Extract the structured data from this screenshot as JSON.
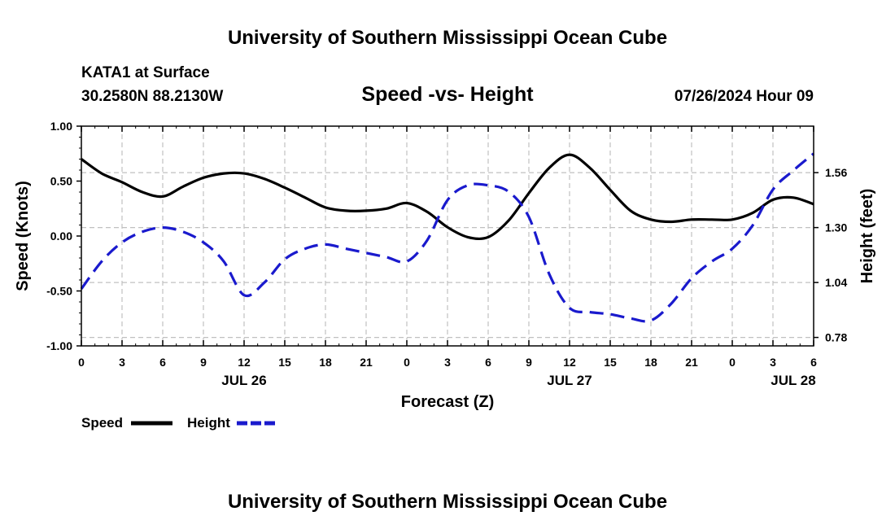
{
  "header": {
    "title": "University of Southern Mississippi Ocean Cube",
    "station": "KATA1 at Surface",
    "coords": "30.2580N  88.2130W",
    "plot_title": "Speed -vs- Height",
    "datetime": "07/26/2024 Hour 09"
  },
  "footer": {
    "title": "University of Southern Mississippi Ocean Cube"
  },
  "colors": {
    "speed": "#000000",
    "height": "#1a1acd",
    "grid": "#c0c0c0"
  },
  "chart_data": {
    "type": "line",
    "title": "Speed -vs- Height",
    "xlabel": "Forecast (Z)",
    "ylabel": "Speed (Knots)",
    "ylabel_right": "Height (feet)",
    "x_hours": [
      0,
      54
    ],
    "x_ticks": [
      0,
      3,
      6,
      9,
      12,
      15,
      18,
      21,
      24,
      27,
      30,
      33,
      36,
      39,
      42,
      45,
      48,
      51,
      54
    ],
    "x_tick_labels": [
      "0",
      "3",
      "6",
      "9",
      "12",
      "15",
      "18",
      "21",
      "0",
      "3",
      "6",
      "9",
      "12",
      "15",
      "18",
      "21",
      "0",
      "3",
      "6"
    ],
    "date_labels": [
      {
        "hour": 12,
        "label": "JUL 26"
      },
      {
        "hour": 36,
        "label": "JUL 27"
      },
      {
        "hour": 52.5,
        "label": "JUL 28"
      }
    ],
    "ylim": [
      -1.0,
      1.0
    ],
    "y_ticks": [
      -1.0,
      -0.5,
      0.0,
      0.5,
      1.0
    ],
    "y_tick_labels": [
      "-1.00",
      "-0.50",
      "0.00",
      "0.50",
      "1.00"
    ],
    "ylim_right": [
      0.74,
      1.78
    ],
    "y_ticks_right": [
      0.78,
      1.04,
      1.3,
      1.56
    ],
    "y_tick_labels_right": [
      "0.78",
      "1.04",
      "1.30",
      "1.56"
    ],
    "grid": true,
    "legend_position": "bottom-left",
    "series": [
      {
        "name": "Speed",
        "axis": "left",
        "style": "solid",
        "x": [
          0,
          1.5,
          3,
          4.5,
          6,
          7.5,
          9,
          10.5,
          12,
          13.5,
          15,
          16.5,
          18,
          19.5,
          21,
          22.5,
          24,
          25.5,
          27,
          28.5,
          30,
          31.5,
          33,
          34.5,
          36,
          37.5,
          39,
          40.5,
          42,
          43.5,
          45,
          46.5,
          48,
          49.5,
          51,
          52.5,
          54
        ],
        "values": [
          0.7,
          0.57,
          0.49,
          0.4,
          0.36,
          0.45,
          0.53,
          0.57,
          0.57,
          0.52,
          0.44,
          0.35,
          0.26,
          0.23,
          0.23,
          0.25,
          0.3,
          0.22,
          0.08,
          -0.01,
          -0.01,
          0.14,
          0.39,
          0.62,
          0.74,
          0.62,
          0.42,
          0.23,
          0.15,
          0.13,
          0.15,
          0.15,
          0.15,
          0.21,
          0.33,
          0.35,
          0.29
        ]
      },
      {
        "name": "Height",
        "axis": "right",
        "style": "dashed",
        "x": [
          0,
          1.5,
          3,
          4.5,
          6,
          7.5,
          9,
          10.5,
          12,
          13.5,
          15,
          16.5,
          18,
          19.5,
          21,
          22.5,
          24,
          25.5,
          27,
          28.5,
          30,
          31.5,
          33,
          34.5,
          36,
          37.5,
          39,
          40.5,
          42,
          43.5,
          45,
          46.5,
          48,
          49.5,
          51,
          52.5,
          54
        ],
        "values": [
          1.01,
          1.14,
          1.23,
          1.28,
          1.3,
          1.28,
          1.23,
          1.14,
          0.98,
          1.04,
          1.15,
          1.2,
          1.22,
          1.2,
          1.18,
          1.16,
          1.14,
          1.24,
          1.43,
          1.5,
          1.5,
          1.47,
          1.35,
          1.08,
          0.92,
          0.9,
          0.89,
          0.87,
          0.86,
          0.94,
          1.06,
          1.14,
          1.2,
          1.31,
          1.48,
          1.57,
          1.65
        ]
      }
    ]
  }
}
